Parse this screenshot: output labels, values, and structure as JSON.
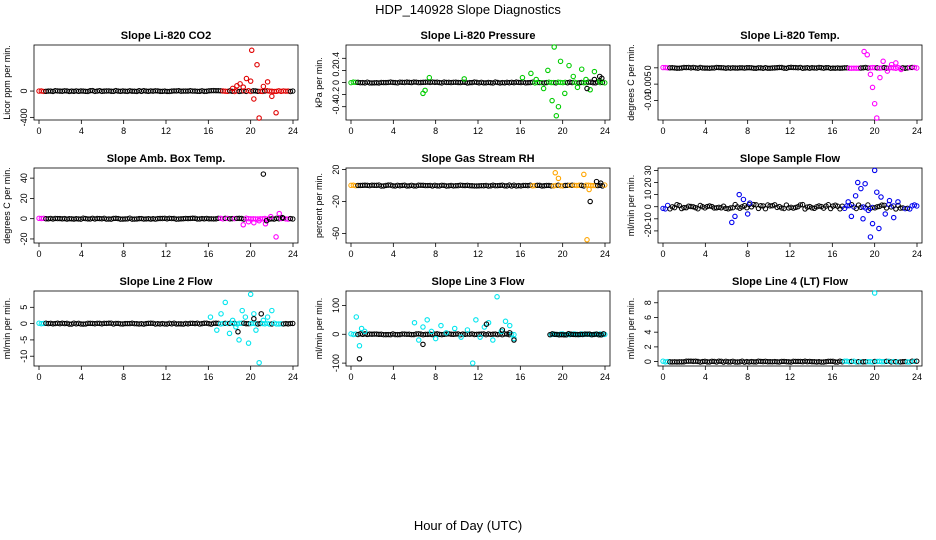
{
  "page": {
    "title": "HDP_140928  Slope Diagnostics",
    "x_title": "Hour of Day (UTC)"
  },
  "chart_data": [
    {
      "type": "scatter",
      "title": "Slope Li-820 CO2",
      "ylabel": "Licor ppm per min.",
      "xlim": [
        0,
        24
      ],
      "xticks": [
        0,
        4,
        8,
        12,
        16,
        20,
        24
      ],
      "ylim": [
        -440,
        700
      ],
      "yticks": [
        -400,
        0
      ],
      "series": [
        {
          "name": "red",
          "color": "#e00000",
          "x": [
            18.3,
            18.7,
            19.0,
            19.3,
            19.6,
            20.0,
            20.1,
            20.3,
            20.6,
            20.8,
            21.2,
            21.6,
            22.0,
            22.4
          ],
          "y": [
            40,
            80,
            110,
            60,
            190,
            150,
            620,
            -120,
            400,
            -450,
            70,
            140,
            -80,
            -330
          ]
        }
      ]
    },
    {
      "type": "scatter",
      "title": "Slope Li-820 Pressure",
      "ylabel": "kPa per min.",
      "xlim": [
        0,
        24
      ],
      "xticks": [
        0,
        4,
        8,
        12,
        16,
        20,
        24
      ],
      "ylim": [
        -0.62,
        0.62
      ],
      "yticks": [
        -0.4,
        -0.2,
        0.0,
        0.2,
        0.4
      ],
      "series": [
        {
          "name": "green",
          "color": "#00cc00",
          "x": [
            6.8,
            7.0,
            7.4,
            10.7,
            16.2,
            17.0,
            17.5,
            18.2,
            18.6,
            19.0,
            19.2,
            19.4,
            19.6,
            19.8,
            20.2,
            20.6,
            21.0,
            21.4,
            21.8,
            22.2,
            22.6,
            23.0,
            23.5
          ],
          "y": [
            -0.18,
            -0.13,
            0.08,
            0.06,
            0.08,
            0.15,
            0.05,
            -0.1,
            0.2,
            -0.3,
            0.6,
            -0.55,
            -0.4,
            0.35,
            -0.18,
            0.28,
            0.1,
            -0.08,
            0.22,
            0.05,
            -0.12,
            0.18,
            0.03
          ]
        },
        {
          "name": "black-outliers",
          "color": "#000000",
          "x": [
            22.3,
            23.0,
            23.5,
            23.7
          ],
          "y": [
            -0.1,
            0.05,
            0.1,
            0.07
          ]
        }
      ]
    },
    {
      "type": "scatter",
      "title": "Slope Li-820 Temp.",
      "ylabel": "degrees C per min.",
      "xlim": [
        0,
        24
      ],
      "xticks": [
        0,
        4,
        8,
        12,
        16,
        20,
        24
      ],
      "ylim": [
        -0.016,
        0.007
      ],
      "yticks": [
        -0.01,
        -0.005,
        0.0
      ],
      "series": [
        {
          "name": "magenta",
          "color": "#ff00ff",
          "x": [
            19.0,
            19.3,
            19.6,
            19.8,
            20.0,
            20.2,
            20.5,
            20.8,
            21.2,
            21.6,
            22.0,
            22.5
          ],
          "y": [
            0.005,
            0.004,
            -0.002,
            -0.006,
            -0.011,
            -0.016,
            -0.003,
            0.002,
            -0.001,
            0.001,
            0.0015,
            -0.0005
          ]
        }
      ]
    },
    {
      "type": "scatter",
      "title": "Slope Amb. Box Temp.",
      "ylabel": "degrees C per min.",
      "xlim": [
        0,
        24
      ],
      "xticks": [
        0,
        4,
        8,
        12,
        16,
        20,
        24
      ],
      "ylim": [
        -24,
        50
      ],
      "yticks": [
        -20,
        0,
        20,
        40
      ],
      "series": [
        {
          "name": "magenta",
          "color": "#ff00ff",
          "x": [
            19.3,
            19.8,
            20.3,
            20.8,
            21.4,
            21.9,
            22.4,
            22.7
          ],
          "y": [
            -6,
            -3,
            -4,
            -2,
            -5,
            2,
            -18,
            5
          ]
        },
        {
          "name": "black-outliers",
          "color": "#000000",
          "x": [
            21.2,
            21.5,
            23.0
          ],
          "y": [
            44,
            -2,
            1
          ]
        }
      ]
    },
    {
      "type": "scatter",
      "title": "Slope Gas Stream RH",
      "ylabel": "percent per min.",
      "xlim": [
        0,
        24
      ],
      "xticks": [
        0,
        4,
        8,
        12,
        16,
        20,
        24
      ],
      "ylim": [
        -72,
        22
      ],
      "yticks": [
        -60,
        -20,
        20
      ],
      "series": [
        {
          "name": "orange",
          "color": "#ffa500",
          "x": [
            19.3,
            19.6,
            22.0,
            22.3,
            22.5
          ],
          "y": [
            16,
            9,
            14,
            -68,
            -5
          ]
        },
        {
          "name": "black-outliers",
          "color": "#000000",
          "x": [
            22.6,
            23.2,
            23.6
          ],
          "y": [
            -20,
            5,
            3
          ]
        }
      ]
    },
    {
      "type": "scatter",
      "title": "Slope Sample Flow",
      "ylabel": "ml/min per min.",
      "xlim": [
        0,
        24
      ],
      "xticks": [
        0,
        4,
        8,
        12,
        16,
        20,
        24
      ],
      "ylim": [
        -30,
        32
      ],
      "yticks": [
        -20,
        -10,
        0,
        10,
        20,
        30
      ],
      "series": [
        {
          "name": "blue",
          "color": "#0000ee",
          "x": [
            6.5,
            6.8,
            7.2,
            7.6,
            8.0,
            8.2,
            17.5,
            17.8,
            18.2,
            18.4,
            18.7,
            18.9,
            19.1,
            19.4,
            19.6,
            19.8,
            20.0,
            20.2,
            20.4,
            20.6,
            21.0,
            21.4,
            21.8,
            22.2
          ],
          "y": [
            -13,
            -8,
            10,
            6,
            -6,
            3,
            4,
            -8,
            9,
            20,
            15,
            -10,
            19,
            -3,
            -25,
            -14,
            30,
            12,
            -18,
            8,
            -6,
            5,
            -9,
            4
          ]
        }
      ]
    },
    {
      "type": "scatter",
      "title": "Slope Line 2 Flow",
      "ylabel": "ml/min per min.",
      "xlim": [
        0,
        24
      ],
      "xticks": [
        0,
        4,
        8,
        12,
        16,
        20,
        24
      ],
      "ylim": [
        -13,
        10
      ],
      "yticks": [
        -10,
        -5,
        0,
        5
      ],
      "series": [
        {
          "name": "cyan",
          "color": "#00e5ee",
          "x": [
            16.2,
            16.8,
            17.2,
            17.6,
            18.0,
            18.3,
            18.6,
            18.9,
            19.2,
            19.5,
            19.8,
            20.0,
            20.3,
            20.5,
            20.8,
            21.2,
            21.6,
            22.0
          ],
          "y": [
            2,
            -2,
            3,
            6.5,
            -3,
            1,
            -1,
            -5,
            4,
            2,
            -6,
            9,
            3,
            -2,
            -12,
            1,
            2,
            4
          ]
        },
        {
          "name": "black-outliers",
          "color": "#000000",
          "x": [
            18.8,
            20.3,
            21.0
          ],
          "y": [
            -2.5,
            1.5,
            3
          ]
        }
      ]
    },
    {
      "type": "scatter",
      "title": "Slope Line 3 Flow",
      "ylabel": "ml/min per min.",
      "xlim": [
        0,
        24
      ],
      "xticks": [
        0,
        4,
        8,
        12,
        16,
        20,
        24
      ],
      "ylim": [
        -110,
        150
      ],
      "yticks": [
        -100,
        0,
        100
      ],
      "series": [
        {
          "name": "cyan",
          "color": "#00e5ee",
          "x": [
            0.5,
            0.8,
            1.0,
            1.3,
            6.0,
            6.4,
            6.8,
            7.2,
            7.6,
            8.0,
            8.5,
            9.0,
            9.8,
            10.4,
            11.0,
            11.5,
            11.8,
            12.2,
            12.6,
            13.0,
            13.4,
            13.8,
            14.2,
            14.6,
            15.0,
            15.4
          ],
          "y": [
            60,
            -40,
            20,
            10,
            40,
            -20,
            25,
            50,
            10,
            -15,
            30,
            5,
            20,
            -10,
            15,
            -100,
            50,
            -10,
            25,
            40,
            -20,
            130,
            10,
            45,
            30,
            -15
          ]
        },
        {
          "name": "black-outliers",
          "color": "#000000",
          "x": [
            0.8,
            6.8,
            12.8,
            14.3,
            15.0,
            15.4
          ],
          "y": [
            -85,
            -35,
            35,
            15,
            5,
            -20
          ]
        }
      ]
    },
    {
      "type": "scatter",
      "title": "Slope Line 4 (LT) Flow",
      "ylabel": "ml/min per min.",
      "xlim": [
        0,
        24
      ],
      "xticks": [
        0,
        4,
        8,
        12,
        16,
        20,
        24
      ],
      "ylim": [
        -0.6,
        9.6
      ],
      "yticks": [
        0,
        2,
        4,
        6,
        8
      ],
      "series": [
        {
          "name": "cyan",
          "color": "#00e5ee",
          "x": [
            20.0
          ],
          "y": [
            9.4
          ]
        }
      ]
    }
  ]
}
